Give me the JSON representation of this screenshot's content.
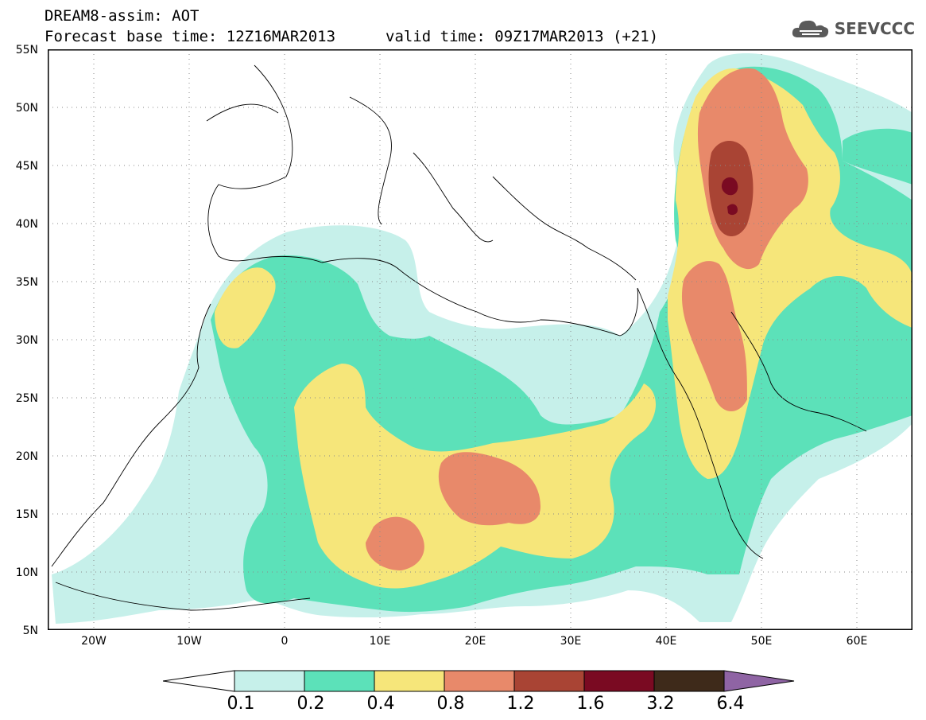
{
  "header": {
    "title_line1": "DREAM8-assim: AOT",
    "title_line2": "Forecast base time: 12Z16MAR2013",
    "valid_time": "valid time: 09Z17MAR2013 (+21)",
    "logo_text": "SEEVCCC",
    "logo_icon": "cloud-icon"
  },
  "map": {
    "latitude_labels": [
      "55N",
      "50N",
      "45N",
      "40N",
      "35N",
      "30N",
      "25N",
      "20N",
      "15N",
      "10N",
      "5N"
    ],
    "longitude_labels": [
      "20W",
      "10W",
      "0",
      "10E",
      "20E",
      "30E",
      "40E",
      "50E",
      "60E"
    ],
    "lat_range": [
      5,
      55
    ],
    "lon_range": [
      -25,
      65
    ],
    "grid": "dotted"
  },
  "colorbar": {
    "labels": [
      "0.1",
      "0.2",
      "0.4",
      "0.8",
      "1.2",
      "1.6",
      "3.2",
      "6.4"
    ],
    "colors": [
      "#ffffff",
      "#c6f0ea",
      "#5ce1b9",
      "#f6e67a",
      "#e8896a",
      "#a94434",
      "#7a0a22",
      "#3e2a1a",
      "#8f64a4"
    ]
  }
}
